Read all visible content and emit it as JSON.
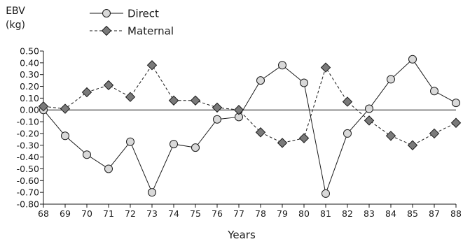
{
  "chart_data": {
    "type": "line",
    "ylabel": [
      "EBV",
      "(kg)"
    ],
    "xlabel": "Years",
    "categories": [
      "68",
      "69",
      "70",
      "71",
      "72",
      "73",
      "74",
      "75",
      "76",
      "77",
      "78",
      "79",
      "80",
      "81",
      "82",
      "83",
      "84",
      "85",
      "87",
      "88"
    ],
    "ylim": [
      -0.8,
      0.5
    ],
    "yticks": [
      0.5,
      0.4,
      0.3,
      0.2,
      0.1,
      0.0,
      -0.1,
      -0.2,
      -0.3,
      -0.4,
      -0.5,
      -0.6,
      -0.7,
      -0.8
    ],
    "ytick_labels": [
      "0.50",
      "0.40",
      "0.30",
      "0.20",
      "0.10",
      "0.00",
      "-0.10",
      "-0.20",
      "-0.30",
      "-0.40",
      "-0.50",
      "-0.60",
      "-0.70",
      "-0.80"
    ],
    "legend_position": "top-left",
    "series": [
      {
        "name": "Direct",
        "marker": "circle",
        "line_style": "solid",
        "values": [
          0.0,
          -0.22,
          -0.38,
          -0.5,
          -0.27,
          -0.7,
          -0.29,
          -0.32,
          -0.08,
          -0.06,
          0.25,
          0.38,
          0.23,
          -0.71,
          -0.2,
          0.01,
          0.26,
          0.43,
          0.16,
          0.06
        ]
      },
      {
        "name": "Maternal",
        "marker": "diamond",
        "line_style": "dashed",
        "values": [
          0.03,
          0.01,
          0.15,
          0.21,
          0.11,
          0.38,
          0.08,
          0.08,
          0.02,
          0.0,
          -0.19,
          -0.28,
          -0.24,
          0.36,
          0.07,
          -0.09,
          -0.22,
          -0.3,
          -0.2,
          -0.11
        ]
      }
    ]
  },
  "colors": {
    "direct_marker_fill": "#d9d9d9",
    "maternal_marker_fill": "#7a7a7a",
    "line": "#1a1a1a"
  }
}
